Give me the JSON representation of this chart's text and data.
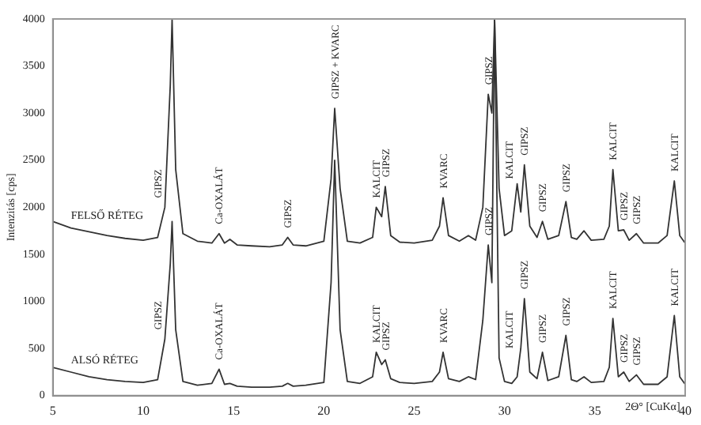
{
  "chart_data": {
    "type": "line",
    "xlabel": "2Θ° [CuKα]",
    "ylabel": "Intenzitás [cps]",
    "x": [
      5,
      6,
      7,
      8,
      9,
      10,
      10.8,
      11.2,
      11.5,
      11.6,
      11.8,
      12.2,
      13,
      13.8,
      14.2,
      14.5,
      14.8,
      15.2,
      16,
      17,
      17.7,
      18,
      18.3,
      19,
      20,
      20.4,
      20.6,
      20.9,
      21.3,
      22,
      22.7,
      22.9,
      23.2,
      23.4,
      23.7,
      24.2,
      25,
      26,
      26.4,
      26.6,
      26.9,
      27.5,
      28,
      28.4,
      28.8,
      29.1,
      29.3,
      29.45,
      29.7,
      30,
      30.4,
      30.7,
      30.9,
      31.1,
      31.4,
      31.8,
      32.1,
      32.4,
      33,
      33.4,
      33.7,
      34,
      34.4,
      34.8,
      35.5,
      35.8,
      36,
      36.3,
      36.6,
      36.9,
      37.3,
      37.7,
      38.5,
      39,
      39.4,
      39.7,
      40
    ],
    "series": [
      {
        "name": "FELSŐ RÉTEG",
        "color": "#333333",
        "values": [
          1850,
          1780,
          1740,
          1700,
          1670,
          1650,
          1680,
          2000,
          3300,
          4000,
          2400,
          1720,
          1640,
          1620,
          1720,
          1620,
          1660,
          1600,
          1590,
          1580,
          1600,
          1680,
          1600,
          1590,
          1640,
          2300,
          3050,
          2200,
          1640,
          1620,
          1680,
          2000,
          1900,
          2220,
          1700,
          1630,
          1620,
          1650,
          1800,
          2100,
          1700,
          1640,
          1700,
          1650,
          2000,
          3200,
          3000,
          4000,
          2200,
          1700,
          1750,
          2250,
          1950,
          2450,
          1800,
          1680,
          1850,
          1660,
          1700,
          2060,
          1680,
          1660,
          1750,
          1650,
          1660,
          1800,
          2400,
          1750,
          1760,
          1650,
          1720,
          1620,
          1620,
          1700,
          2280,
          1700,
          1620
        ]
      },
      {
        "name": "ALSÓ RÉTEG",
        "color": "#333333",
        "values": [
          300,
          250,
          200,
          170,
          150,
          140,
          170,
          600,
          1400,
          1850,
          700,
          150,
          110,
          130,
          280,
          120,
          130,
          100,
          90,
          90,
          100,
          130,
          100,
          110,
          140,
          1200,
          2500,
          700,
          150,
          130,
          200,
          460,
          330,
          380,
          180,
          140,
          130,
          150,
          250,
          460,
          180,
          150,
          200,
          170,
          800,
          1600,
          1200,
          4000,
          400,
          150,
          130,
          200,
          500,
          1030,
          250,
          180,
          460,
          160,
          200,
          640,
          170,
          150,
          200,
          140,
          150,
          300,
          820,
          200,
          250,
          150,
          220,
          120,
          120,
          200,
          850,
          200,
          120
        ]
      }
    ],
    "xlim": [
      5,
      40
    ],
    "xticks": [
      5,
      10,
      15,
      20,
      25,
      30,
      35,
      40
    ],
    "ylim": [
      0,
      4000
    ],
    "yticks": [
      0,
      500,
      1000,
      1500,
      2000,
      2500,
      3000,
      3500,
      4000
    ],
    "grid": false,
    "legend": false,
    "marker": "none",
    "line_style": "solid",
    "annotations": [
      {
        "text": "GIPSZ",
        "x": 11.2,
        "y": 2000
      },
      {
        "text": "Ca-OXALÁT",
        "x": 14.2,
        "y": 1720
      },
      {
        "text": "GIPSZ",
        "x": 18,
        "y": 1680
      },
      {
        "text": "GIPSZ + KVARC",
        "x": 20.6,
        "y": 3050
      },
      {
        "text": "KALCIT",
        "x": 22.9,
        "y": 2000
      },
      {
        "text": "GIPSZ",
        "x": 23.4,
        "y": 2220
      },
      {
        "text": "KVARC",
        "x": 26.6,
        "y": 2100
      },
      {
        "text": "GIPSZ",
        "x": 29.1,
        "y": 3200
      },
      {
        "text": "KALCIT",
        "x": 29.7,
        "y": 2200
      },
      {
        "text": "GIPSZ",
        "x": 31.1,
        "y": 2450
      },
      {
        "text": "GIPSZ",
        "x": 32.1,
        "y": 1850
      },
      {
        "text": "GIPSZ",
        "x": 33.4,
        "y": 2060
      },
      {
        "text": "KALCIT",
        "x": 36,
        "y": 2400
      },
      {
        "text": "GIPSZ",
        "x": 36.6,
        "y": 1760
      },
      {
        "text": "GIPSZ",
        "x": 37.3,
        "y": 1720
      },
      {
        "text": "KALCIT",
        "x": 39.4,
        "y": 2280
      },
      {
        "text": "GIPSZ",
        "x": 11.2,
        "y": 600
      },
      {
        "text": "Ca-OXALÁT",
        "x": 14.2,
        "y": 280
      },
      {
        "text": "KALCIT",
        "x": 22.9,
        "y": 460
      },
      {
        "text": "GIPSZ",
        "x": 23.4,
        "y": 380
      },
      {
        "text": "KVARC",
        "x": 26.6,
        "y": 460
      },
      {
        "text": "GIPSZ",
        "x": 29.1,
        "y": 1600
      },
      {
        "text": "KALCIT",
        "x": 29.7,
        "y": 400
      },
      {
        "text": "GIPSZ",
        "x": 31.1,
        "y": 1030
      },
      {
        "text": "GIPSZ",
        "x": 32.1,
        "y": 460
      },
      {
        "text": "GIPSZ",
        "x": 33.4,
        "y": 640
      },
      {
        "text": "KALCIT",
        "x": 36,
        "y": 820
      },
      {
        "text": "GIPSZ",
        "x": 36.6,
        "y": 250
      },
      {
        "text": "GIPSZ",
        "x": 37.3,
        "y": 220
      },
      {
        "text": "KALCIT",
        "x": 39.4,
        "y": 850
      }
    ]
  }
}
